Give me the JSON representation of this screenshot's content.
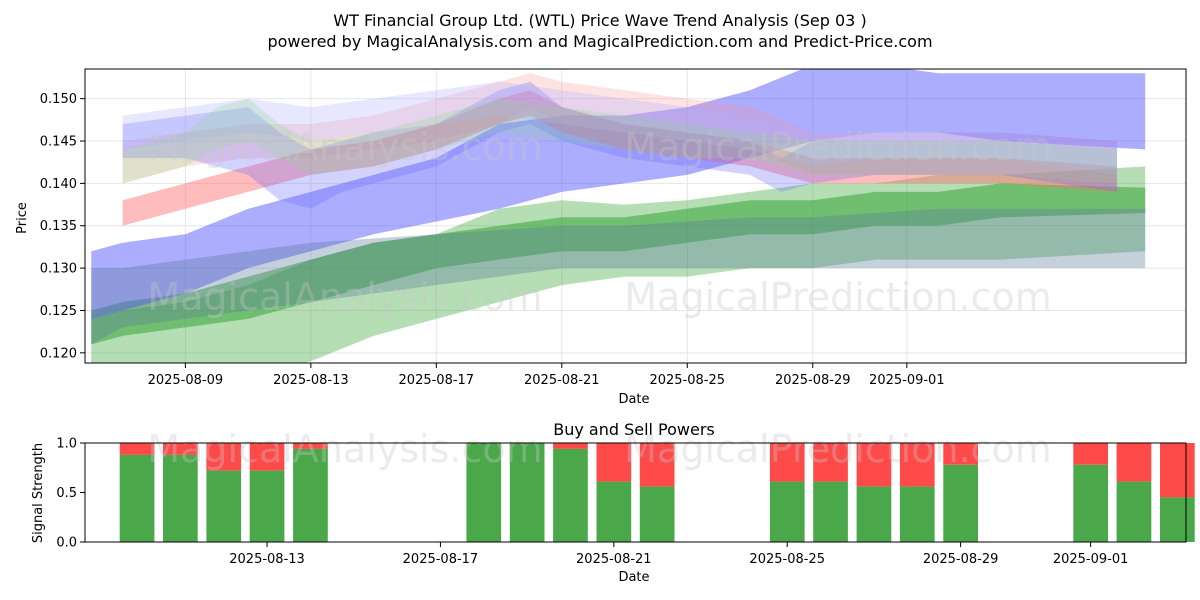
{
  "title": "WT Financial Group Ltd. (WTL) Price Wave Trend Analysis (Sep 03 )",
  "subtitle": "powered by MagicalAnalysis.com and MagicalPrediction.com and Predict-Price.com",
  "watermarks": [
    "MagicalAnalysis.com",
    "MagicalPrediction.com"
  ],
  "colors": {
    "green": "#2ca02c",
    "blue": "#4a4aff",
    "red": "#ff6a6a",
    "buy": "#4aa84a",
    "sell": "#ff4a4a"
  },
  "chart_data": [
    {
      "type": "area",
      "name": "price-wave",
      "xlabel": "Date",
      "ylabel": "Price",
      "xlim": [
        -1.2,
        33.9
      ],
      "ylim": [
        0.1188,
        0.1535
      ],
      "x_dates": [
        "2025-08-07",
        "2025-08-08",
        "2025-08-09",
        "2025-08-10",
        "2025-08-11",
        "2025-08-12",
        "2025-08-13",
        "2025-08-14",
        "2025-08-15",
        "2025-08-16",
        "2025-08-17",
        "2025-08-18",
        "2025-08-19",
        "2025-08-20",
        "2025-08-21",
        "2025-08-22",
        "2025-08-23",
        "2025-08-24",
        "2025-08-25",
        "2025-08-26",
        "2025-08-27",
        "2025-08-28",
        "2025-08-29",
        "2025-08-30",
        "2025-08-31",
        "2025-09-01",
        "2025-09-02",
        "2025-09-03"
      ],
      "x_ticks": [
        {
          "label": "2025-08-09",
          "x": 2
        },
        {
          "label": "2025-08-13",
          "x": 6
        },
        {
          "label": "2025-08-17",
          "x": 10
        },
        {
          "label": "2025-08-21",
          "x": 14
        },
        {
          "label": "2025-08-25",
          "x": 18
        },
        {
          "label": "2025-08-29",
          "x": 22
        },
        {
          "label": "2025-09-01",
          "x": 25
        }
      ],
      "y_ticks": [
        0.12,
        0.125,
        0.13,
        0.135,
        0.14,
        0.145,
        0.15
      ],
      "y_tick_labels": [
        "0.120",
        "0.125",
        "0.130",
        "0.135",
        "0.140",
        "0.145",
        "0.150"
      ],
      "series": [
        {
          "name": "green-wide",
          "color": "#2ca02c",
          "opacity": 0.35,
          "x": [
            -1,
            0,
            2,
            4,
            6,
            8,
            10,
            12,
            14,
            16,
            18,
            20,
            22,
            24,
            26,
            28,
            32.6
          ],
          "lower": [
            0.112,
            0.114,
            0.116,
            0.117,
            0.119,
            0.122,
            0.124,
            0.126,
            0.128,
            0.129,
            0.129,
            0.13,
            0.13,
            0.131,
            0.131,
            0.131,
            0.132
          ],
          "upper": [
            0.124,
            0.125,
            0.126,
            0.128,
            0.131,
            0.133,
            0.134,
            0.137,
            0.138,
            0.1375,
            0.138,
            0.139,
            0.14,
            0.14,
            0.141,
            0.141,
            0.142
          ]
        },
        {
          "name": "green-core",
          "color": "#2ca02c",
          "opacity": 0.5,
          "x": [
            -1,
            0,
            2,
            4,
            6,
            8,
            10,
            12,
            14,
            16,
            18,
            20,
            22,
            24,
            26,
            28,
            32.6
          ],
          "lower": [
            0.121,
            0.122,
            0.123,
            0.124,
            0.126,
            0.128,
            0.13,
            0.131,
            0.132,
            0.132,
            0.133,
            0.134,
            0.134,
            0.135,
            0.135,
            0.136,
            0.1365
          ],
          "upper": [
            0.125,
            0.126,
            0.127,
            0.129,
            0.131,
            0.133,
            0.134,
            0.135,
            0.136,
            0.136,
            0.137,
            0.138,
            0.138,
            0.139,
            0.139,
            0.14,
            0.1395
          ]
        },
        {
          "name": "blue-wide",
          "color": "#4a4aff",
          "opacity": 0.45,
          "x": [
            -1,
            0,
            2,
            4,
            6,
            8,
            10,
            12,
            14,
            16,
            18,
            20,
            22,
            24,
            26,
            28,
            32.6
          ],
          "lower": [
            0.124,
            0.125,
            0.127,
            0.13,
            0.132,
            0.134,
            0.1355,
            0.137,
            0.139,
            0.14,
            0.141,
            0.143,
            0.145,
            0.146,
            0.146,
            0.145,
            0.144
          ],
          "upper": [
            0.132,
            0.133,
            0.134,
            0.137,
            0.139,
            0.141,
            0.143,
            0.147,
            0.148,
            0.148,
            0.149,
            0.151,
            0.154,
            0.154,
            0.153,
            0.153,
            0.153
          ]
        },
        {
          "name": "slate-band",
          "color": "#557799",
          "opacity": 0.35,
          "x": [
            -1,
            0,
            2,
            4,
            6,
            8,
            10,
            12,
            14,
            16,
            18,
            20,
            22,
            24,
            26,
            28,
            32.6
          ],
          "lower": [
            0.121,
            0.123,
            0.124,
            0.125,
            0.126,
            0.127,
            0.128,
            0.129,
            0.13,
            0.13,
            0.13,
            0.13,
            0.13,
            0.13,
            0.13,
            0.13,
            0.13
          ],
          "upper": [
            0.13,
            0.13,
            0.131,
            0.132,
            0.133,
            0.1335,
            0.134,
            0.1345,
            0.135,
            0.135,
            0.1355,
            0.136,
            0.136,
            0.1365,
            0.137,
            0.137,
            0.137
          ]
        },
        {
          "name": "red-low",
          "color": "#ff6a6a",
          "opacity": 0.45,
          "x": [
            0,
            2,
            3,
            5,
            6,
            8,
            10,
            12,
            13,
            14,
            16,
            18,
            20,
            22,
            24,
            26,
            28,
            31.7
          ],
          "lower": [
            0.135,
            0.137,
            0.138,
            0.14,
            0.141,
            0.142,
            0.144,
            0.147,
            0.148,
            0.146,
            0.144,
            0.143,
            0.142,
            0.14,
            0.14,
            0.14,
            0.14,
            0.139
          ],
          "upper": [
            0.138,
            0.14,
            0.141,
            0.143,
            0.144,
            0.145,
            0.147,
            0.15,
            0.151,
            0.149,
            0.147,
            0.146,
            0.145,
            0.143,
            0.143,
            0.143,
            0.143,
            0.142
          ]
        },
        {
          "name": "red-high",
          "color": "#ff8a8a",
          "opacity": 0.25,
          "x": [
            0,
            2,
            4,
            6,
            8,
            10,
            12,
            13,
            14,
            16,
            18,
            20,
            22,
            24,
            26,
            28,
            31.7
          ],
          "lower": [
            0.14,
            0.142,
            0.143,
            0.143,
            0.144,
            0.145,
            0.147,
            0.149,
            0.147,
            0.146,
            0.145,
            0.144,
            0.141,
            0.141,
            0.141,
            0.141,
            0.14
          ],
          "upper": [
            0.145,
            0.146,
            0.147,
            0.147,
            0.148,
            0.15,
            0.152,
            0.153,
            0.152,
            0.151,
            0.15,
            0.149,
            0.146,
            0.146,
            0.146,
            0.146,
            0.145
          ]
        },
        {
          "name": "blue-mid",
          "color": "#6a6aff",
          "opacity": 0.3,
          "x": [
            0,
            2,
            4,
            5,
            6,
            7,
            8,
            10,
            12,
            13,
            14,
            16,
            18,
            20,
            21,
            22,
            24,
            26,
            28,
            31.7
          ],
          "lower": [
            0.143,
            0.143,
            0.141,
            0.138,
            0.137,
            0.139,
            0.14,
            0.142,
            0.146,
            0.147,
            0.145,
            0.143,
            0.142,
            0.141,
            0.139,
            0.14,
            0.141,
            0.141,
            0.141,
            0.139
          ],
          "upper": [
            0.147,
            0.148,
            0.149,
            0.146,
            0.144,
            0.145,
            0.146,
            0.147,
            0.151,
            0.152,
            0.149,
            0.147,
            0.146,
            0.145,
            0.143,
            0.145,
            0.146,
            0.146,
            0.146,
            0.145
          ]
        },
        {
          "name": "lavender",
          "color": "#b0b0ff",
          "opacity": 0.3,
          "x": [
            0,
            2,
            4,
            6,
            8,
            10,
            12,
            14,
            16,
            18,
            20,
            22,
            24,
            26,
            28,
            31.7
          ],
          "lower": [
            0.144,
            0.145,
            0.146,
            0.145,
            0.146,
            0.147,
            0.148,
            0.147,
            0.146,
            0.145,
            0.144,
            0.142,
            0.143,
            0.143,
            0.143,
            0.141
          ],
          "upper": [
            0.148,
            0.149,
            0.15,
            0.149,
            0.15,
            0.151,
            0.152,
            0.151,
            0.15,
            0.149,
            0.148,
            0.146,
            0.147,
            0.147,
            0.147,
            0.145
          ]
        },
        {
          "name": "pale-green",
          "color": "#88dd88",
          "opacity": 0.25,
          "x": [
            0,
            2,
            3,
            4,
            5,
            6,
            8,
            10,
            12,
            14,
            16,
            18,
            20,
            22,
            24,
            26,
            28,
            31.7
          ],
          "lower": [
            0.14,
            0.142,
            0.144,
            0.145,
            0.143,
            0.141,
            0.142,
            0.144,
            0.146,
            0.145,
            0.144,
            0.143,
            0.143,
            0.141,
            0.141,
            0.141,
            0.141,
            0.14
          ],
          "upper": [
            0.144,
            0.146,
            0.149,
            0.15,
            0.147,
            0.145,
            0.146,
            0.148,
            0.15,
            0.149,
            0.148,
            0.147,
            0.146,
            0.145,
            0.145,
            0.145,
            0.145,
            0.144
          ]
        }
      ]
    },
    {
      "type": "bar",
      "name": "buy-sell-powers",
      "title": "Buy and Sell Powers",
      "xlabel": "Date",
      "ylabel": "Signal Strength",
      "ylim": [
        0,
        1.0
      ],
      "y_ticks": [
        0.0,
        0.5,
        1.0
      ],
      "y_tick_labels": [
        "0.0",
        "0.5",
        "1.0"
      ],
      "xlim": [
        -0.2,
        25.2
      ],
      "x_ticks": [
        {
          "label": "2025-08-13",
          "x": 4
        },
        {
          "label": "2025-08-17",
          "x": 8
        },
        {
          "label": "2025-08-21",
          "x": 12
        },
        {
          "label": "2025-08-25",
          "x": 16
        },
        {
          "label": "2025-08-29",
          "x": 20
        },
        {
          "label": "2025-09-01",
          "x": 23
        }
      ],
      "series": [
        {
          "name": "Buy",
          "color": "#4aa84a"
        },
        {
          "name": "Sell",
          "color": "#ff4a4a"
        }
      ],
      "bars": [
        {
          "x": 1,
          "buy": 0.88
        },
        {
          "x": 2,
          "buy": 0.88
        },
        {
          "x": 3,
          "buy": 0.72
        },
        {
          "x": 4,
          "buy": 0.72
        },
        {
          "x": 5,
          "buy": 0.94
        },
        {
          "x": 9,
          "buy": 1.0
        },
        {
          "x": 10,
          "buy": 1.0
        },
        {
          "x": 11,
          "buy": 0.94
        },
        {
          "x": 12,
          "buy": 0.61
        },
        {
          "x": 13,
          "buy": 0.56
        },
        {
          "x": 16,
          "buy": 0.61
        },
        {
          "x": 17,
          "buy": 0.61
        },
        {
          "x": 18,
          "buy": 0.56
        },
        {
          "x": 19,
          "buy": 0.56
        },
        {
          "x": 20,
          "buy": 0.78
        },
        {
          "x": 23,
          "buy": 0.78
        },
        {
          "x": 24,
          "buy": 0.61
        },
        {
          "x": 25,
          "buy": 0.45
        }
      ]
    }
  ]
}
